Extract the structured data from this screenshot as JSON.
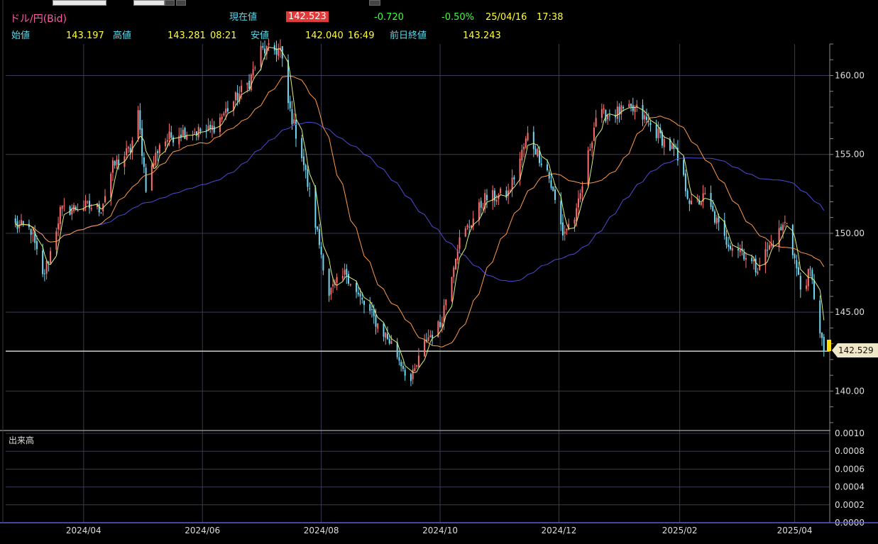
{
  "header": {
    "pair": "ドル/円(Bid)",
    "current_label": "現在値",
    "current_value": "142.523",
    "change": "-0.720",
    "change_pct": "-0.50%",
    "date": "25/04/16",
    "time": "17:38",
    "open_label": "始値",
    "open_value": "143.197",
    "high_label": "高値",
    "high_value": "143.281",
    "high_time": "08:21",
    "low_label": "安値",
    "low_value": "142.040",
    "low_time": "16:49",
    "prev_label": "前日終値",
    "prev_value": "143.243"
  },
  "volume_panel": {
    "label": "出来高",
    "ticks": [
      "0.0010",
      "0.0008",
      "0.0006",
      "0.0004",
      "0.0002",
      "0.0000"
    ]
  },
  "price_line_label": "142.529",
  "colors": {
    "up": "#ff6f6f",
    "down": "#6fd8f2",
    "ma_short": "#d8f07a",
    "ma_mid": "#ff9a4a",
    "ma_long": "#4b4bd8",
    "grid": "#3a3a52"
  },
  "chart_data": {
    "type": "candlestick",
    "x_tick_labels": [
      "2024/04",
      "2024/06",
      "2024/08",
      "2024/10",
      "2024/12",
      "2025/02",
      "2025/04"
    ],
    "y_tick_labels": [
      "160.00",
      "155.00",
      "150.00",
      "145.00",
      "140.00"
    ],
    "ylim": [
      137.5,
      162
    ],
    "last_price": 142.529,
    "close_path": [
      [
        "2024-02-26",
        150.5
      ],
      [
        "2024-03-05",
        150.2
      ],
      [
        "2024-03-11",
        147.2
      ],
      [
        "2024-03-15",
        148.8
      ],
      [
        "2024-03-20",
        151.4
      ],
      [
        "2024-04-01",
        151.7
      ],
      [
        "2024-04-10",
        151.6
      ],
      [
        "2024-04-16",
        154.2
      ],
      [
        "2024-04-25",
        155.3
      ],
      [
        "2024-04-29",
        157.5
      ],
      [
        "2024-05-03",
        153.0
      ],
      [
        "2024-05-10",
        155.7
      ],
      [
        "2024-05-20",
        156.4
      ],
      [
        "2024-06-05",
        156.5
      ],
      [
        "2024-06-12",
        157.6
      ],
      [
        "2024-06-25",
        159.6
      ],
      [
        "2024-07-01",
        161.6
      ],
      [
        "2024-07-11",
        161.6
      ],
      [
        "2024-07-15",
        158.2
      ],
      [
        "2024-07-22",
        155.0
      ],
      [
        "2024-08-05",
        146.2
      ],
      [
        "2024-08-14",
        147.5
      ],
      [
        "2024-08-20",
        146.0
      ],
      [
        "2024-09-06",
        143.0
      ],
      [
        "2024-09-16",
        140.6
      ],
      [
        "2024-09-24",
        143.3
      ],
      [
        "2024-10-01",
        144.2
      ],
      [
        "2024-10-10",
        149.3
      ],
      [
        "2024-10-24",
        152.2
      ],
      [
        "2024-11-05",
        152.5
      ],
      [
        "2024-11-15",
        156.2
      ],
      [
        "2024-11-25",
        154.0
      ],
      [
        "2024-12-03",
        150.0
      ],
      [
        "2024-12-10",
        151.2
      ],
      [
        "2024-12-20",
        157.4
      ],
      [
        "2025-01-01",
        157.7
      ],
      [
        "2025-01-10",
        157.8
      ],
      [
        "2025-01-20",
        156.4
      ],
      [
        "2025-01-30",
        155.0
      ],
      [
        "2025-02-07",
        151.7
      ],
      [
        "2025-02-14",
        152.3
      ],
      [
        "2025-02-24",
        149.6
      ],
      [
        "2025-03-05",
        148.9
      ],
      [
        "2025-03-12",
        147.8
      ],
      [
        "2025-03-21",
        149.5
      ],
      [
        "2025-03-28",
        150.8
      ],
      [
        "2025-04-04",
        146.5
      ],
      [
        "2025-04-09",
        147.5
      ],
      [
        "2025-04-16",
        142.5
      ]
    ]
  }
}
